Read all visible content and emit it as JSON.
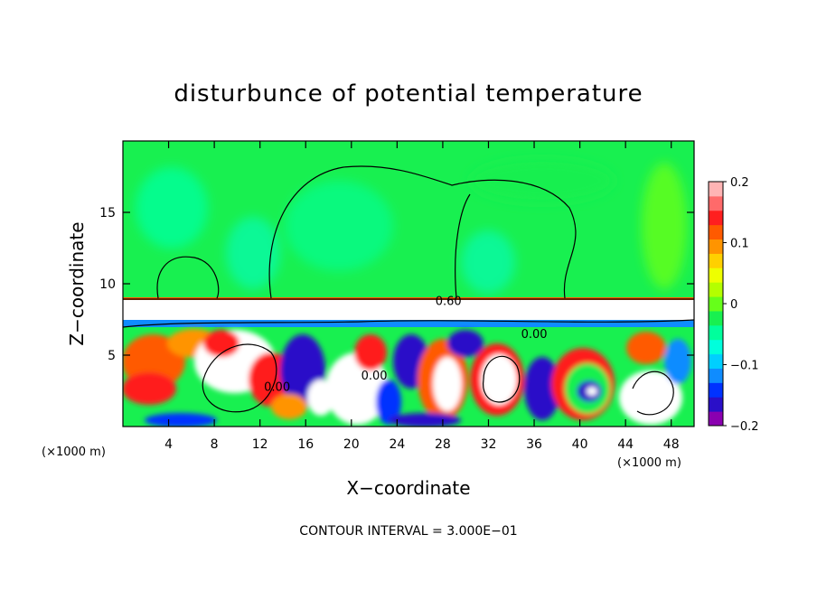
{
  "chart_data": {
    "type": "heatmap",
    "title": "disturbunce of potential temperature",
    "xlabel": "X−coordinate",
    "ylabel": "Z−coordinate",
    "x_unit": "(×1000 m)",
    "x_unit_right": "(×1000 m)",
    "xlim": [
      0,
      50
    ],
    "ylim": [
      0,
      20
    ],
    "xticks": [
      4,
      8,
      12,
      16,
      20,
      24,
      28,
      32,
      36,
      40,
      44,
      48
    ],
    "yticks": [
      5,
      10,
      15
    ],
    "colorbar": {
      "range": [
        -0.2,
        0.2
      ],
      "tick_values": [
        0.2,
        0.1,
        0,
        -0.1,
        -0.2
      ],
      "tick_labels": [
        "0.2",
        "0.1",
        "0",
        "−0.1",
        "−0.2"
      ],
      "colors": [
        "#8a00b0",
        "#2a0fc8",
        "#0032ff",
        "#0f8cff",
        "#00cfff",
        "#00ffdc",
        "#00ff9c",
        "#18f050",
        "#66ff1a",
        "#b4ff00",
        "#eeff00",
        "#ffd000",
        "#ff9400",
        "#ff5a00",
        "#ff1f1f",
        "#ff6a6a",
        "#ffb4b4"
      ]
    },
    "contour_labels": [
      "0.60",
      "0.00",
      "0.00",
      "0.00"
    ],
    "note": "CONTOUR INTERVAL = 3.000E−01"
  }
}
